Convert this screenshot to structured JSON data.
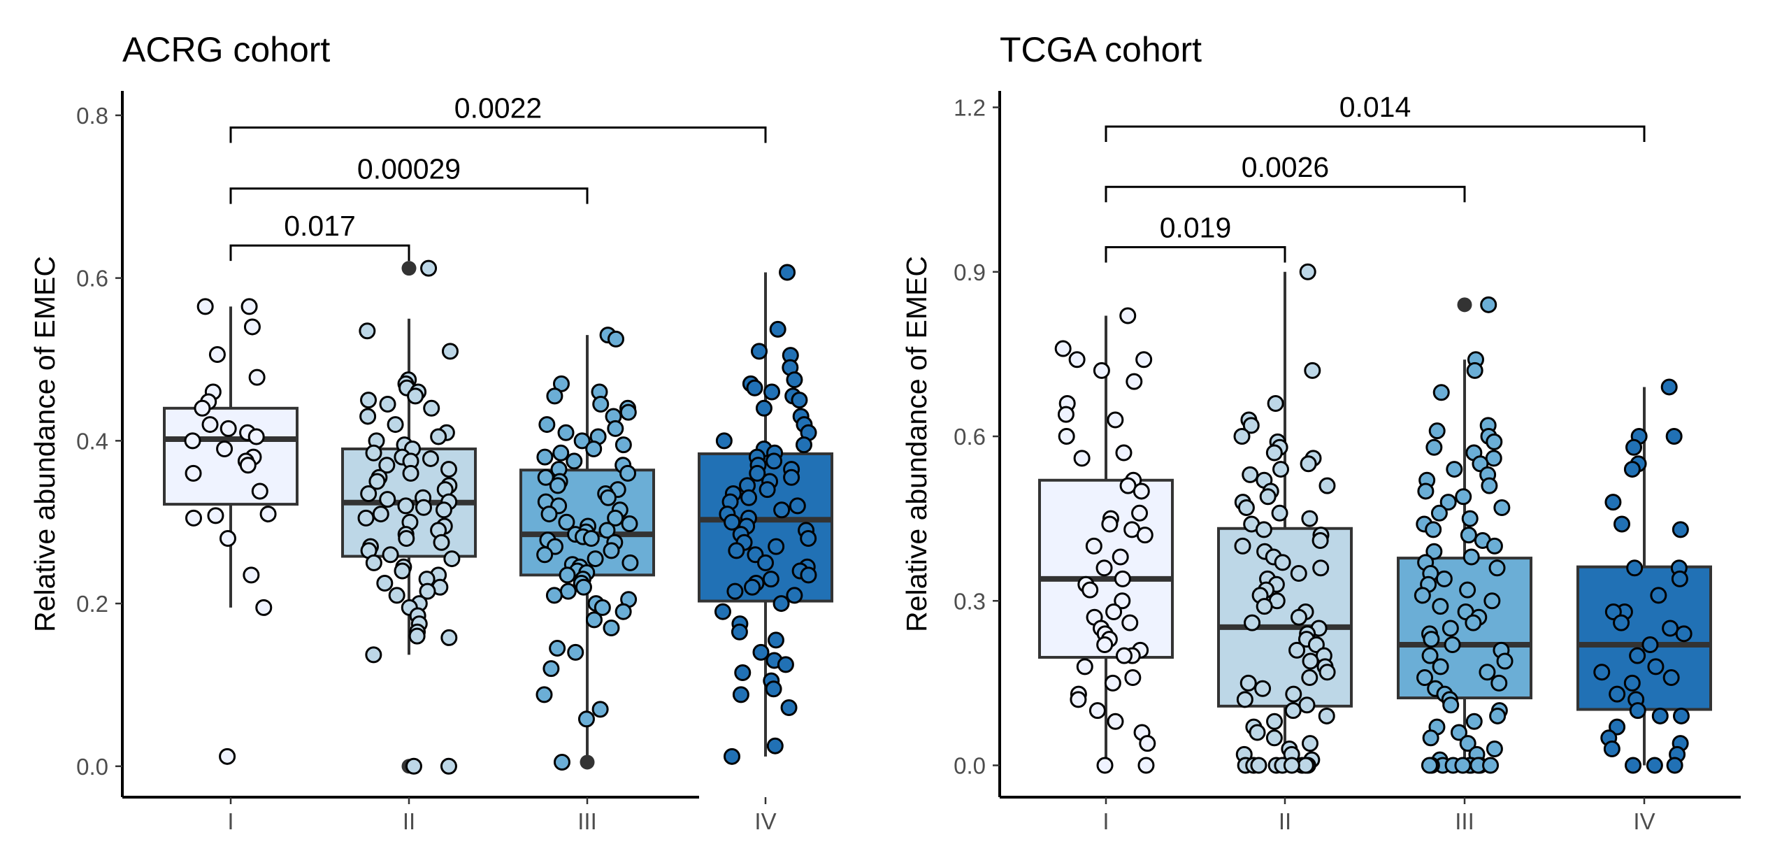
{
  "chart_data": [
    {
      "type": "box",
      "title": "ACRG cohort",
      "xlabel": "",
      "ylabel": "Relative abundance of EMEC",
      "ylim": [
        -0.038,
        0.83
      ],
      "yticks": [
        0.0,
        0.2,
        0.4,
        0.6,
        0.8
      ],
      "ytick_labels": [
        "0.0",
        "0.2",
        "0.4",
        "0.6",
        "0.8"
      ],
      "categories": [
        "I",
        "II",
        "III",
        "IV"
      ],
      "colors": [
        "#eff3ff",
        "#bdd7e7",
        "#6baed6",
        "#2171b5"
      ],
      "boxes": [
        {
          "category": "I",
          "whisker_low": 0.195,
          "q1": 0.322,
          "median": 0.402,
          "q3": 0.44,
          "whisker_high": 0.565,
          "outliers": []
        },
        {
          "category": "II",
          "whisker_low": 0.137,
          "q1": 0.258,
          "median": 0.324,
          "q3": 0.39,
          "whisker_high": 0.55,
          "outliers": [
            0.612,
            0.0
          ]
        },
        {
          "category": "III",
          "whisker_low": 0.01,
          "q1": 0.235,
          "median": 0.285,
          "q3": 0.364,
          "whisker_high": 0.53,
          "outliers": [
            0.005
          ]
        },
        {
          "category": "IV",
          "whisker_low": 0.012,
          "q1": 0.203,
          "median": 0.303,
          "q3": 0.384,
          "whisker_high": 0.607,
          "outliers": []
        }
      ],
      "points": [
        {
          "category": "I",
          "values": [
            0.565,
            0.565,
            0.54,
            0.506,
            0.478,
            0.46,
            0.448,
            0.44,
            0.42,
            0.415,
            0.41,
            0.405,
            0.4,
            0.39,
            0.38,
            0.375,
            0.37,
            0.36,
            0.338,
            0.31,
            0.308,
            0.305,
            0.28,
            0.235,
            0.195,
            0.012
          ]
        },
        {
          "category": "II",
          "values": [
            0.612,
            0.535,
            0.51,
            0.475,
            0.47,
            0.465,
            0.46,
            0.455,
            0.45,
            0.445,
            0.44,
            0.43,
            0.42,
            0.41,
            0.405,
            0.4,
            0.395,
            0.39,
            0.385,
            0.38,
            0.378,
            0.375,
            0.37,
            0.365,
            0.36,
            0.355,
            0.35,
            0.345,
            0.34,
            0.335,
            0.33,
            0.328,
            0.325,
            0.32,
            0.318,
            0.315,
            0.31,
            0.305,
            0.3,
            0.295,
            0.29,
            0.285,
            0.28,
            0.275,
            0.27,
            0.265,
            0.26,
            0.255,
            0.25,
            0.245,
            0.24,
            0.235,
            0.23,
            0.225,
            0.22,
            0.215,
            0.21,
            0.2,
            0.195,
            0.185,
            0.175,
            0.165,
            0.16,
            0.158,
            0.137,
            0.0,
            0.0
          ]
        },
        {
          "category": "III",
          "values": [
            0.53,
            0.525,
            0.47,
            0.46,
            0.455,
            0.445,
            0.44,
            0.435,
            0.43,
            0.42,
            0.415,
            0.41,
            0.405,
            0.4,
            0.395,
            0.39,
            0.385,
            0.38,
            0.375,
            0.37,
            0.365,
            0.36,
            0.355,
            0.35,
            0.345,
            0.34,
            0.335,
            0.33,
            0.325,
            0.32,
            0.315,
            0.31,
            0.305,
            0.3,
            0.298,
            0.295,
            0.29,
            0.288,
            0.285,
            0.282,
            0.28,
            0.278,
            0.275,
            0.27,
            0.265,
            0.26,
            0.255,
            0.25,
            0.248,
            0.245,
            0.24,
            0.238,
            0.235,
            0.23,
            0.225,
            0.22,
            0.215,
            0.21,
            0.205,
            0.2,
            0.195,
            0.19,
            0.18,
            0.17,
            0.145,
            0.14,
            0.12,
            0.088,
            0.07,
            0.058,
            0.005
          ]
        },
        {
          "category": "IV",
          "values": [
            0.607,
            0.537,
            0.51,
            0.505,
            0.49,
            0.475,
            0.47,
            0.465,
            0.46,
            0.455,
            0.45,
            0.44,
            0.43,
            0.42,
            0.41,
            0.4,
            0.395,
            0.39,
            0.385,
            0.38,
            0.375,
            0.37,
            0.365,
            0.36,
            0.355,
            0.35,
            0.345,
            0.34,
            0.335,
            0.33,
            0.325,
            0.32,
            0.315,
            0.31,
            0.305,
            0.3,
            0.295,
            0.29,
            0.285,
            0.28,
            0.275,
            0.27,
            0.265,
            0.26,
            0.25,
            0.245,
            0.24,
            0.235,
            0.23,
            0.225,
            0.22,
            0.215,
            0.21,
            0.2,
            0.19,
            0.175,
            0.165,
            0.155,
            0.14,
            0.13,
            0.125,
            0.115,
            0.105,
            0.095,
            0.088,
            0.072,
            0.025,
            0.012
          ]
        }
      ],
      "comparisons": [
        {
          "groups": [
            "I",
            "II"
          ],
          "label": "0.017",
          "y": 0.64
        },
        {
          "groups": [
            "I",
            "III"
          ],
          "label": "0.00029",
          "y": 0.71
        },
        {
          "groups": [
            "I",
            "IV"
          ],
          "label": "0.0022",
          "y": 0.785
        }
      ]
    },
    {
      "type": "box",
      "title": "TCGA cohort",
      "xlabel": "",
      "ylabel": "Relative abundance of EMEC",
      "ylim": [
        -0.058,
        1.23
      ],
      "yticks": [
        0.0,
        0.3,
        0.6,
        0.9,
        1.2
      ],
      "ytick_labels": [
        "0.0",
        "0.3",
        "0.6",
        "0.9",
        "1.2"
      ],
      "categories": [
        "I",
        "II",
        "III",
        "IV"
      ],
      "colors": [
        "#eff3ff",
        "#bdd7e7",
        "#6baed6",
        "#2171b5"
      ],
      "boxes": [
        {
          "category": "I",
          "whisker_low": 0.0,
          "q1": 0.197,
          "median": 0.34,
          "q3": 0.52,
          "whisker_high": 0.82,
          "outliers": []
        },
        {
          "category": "II",
          "whisker_low": 0.0,
          "q1": 0.108,
          "median": 0.252,
          "q3": 0.432,
          "whisker_high": 0.9,
          "outliers": []
        },
        {
          "category": "III",
          "whisker_low": 0.0,
          "q1": 0.123,
          "median": 0.22,
          "q3": 0.378,
          "whisker_high": 0.74,
          "outliers": [
            0.84
          ]
        },
        {
          "category": "IV",
          "whisker_low": 0.0,
          "q1": 0.102,
          "median": 0.22,
          "q3": 0.362,
          "whisker_high": 0.69,
          "outliers": []
        }
      ],
      "points": [
        {
          "category": "I",
          "values": [
            0.82,
            0.76,
            0.74,
            0.74,
            0.72,
            0.7,
            0.66,
            0.64,
            0.63,
            0.6,
            0.57,
            0.56,
            0.52,
            0.51,
            0.5,
            0.46,
            0.45,
            0.44,
            0.43,
            0.42,
            0.4,
            0.38,
            0.36,
            0.34,
            0.33,
            0.32,
            0.3,
            0.28,
            0.27,
            0.26,
            0.25,
            0.24,
            0.23,
            0.22,
            0.21,
            0.2,
            0.2,
            0.18,
            0.16,
            0.15,
            0.13,
            0.12,
            0.1,
            0.08,
            0.06,
            0.04,
            0.0,
            0.0
          ]
        },
        {
          "category": "II",
          "values": [
            0.9,
            0.72,
            0.66,
            0.63,
            0.62,
            0.6,
            0.59,
            0.58,
            0.57,
            0.56,
            0.55,
            0.54,
            0.53,
            0.52,
            0.51,
            0.5,
            0.49,
            0.48,
            0.47,
            0.46,
            0.45,
            0.44,
            0.43,
            0.42,
            0.41,
            0.4,
            0.39,
            0.38,
            0.37,
            0.36,
            0.35,
            0.34,
            0.33,
            0.32,
            0.31,
            0.3,
            0.29,
            0.28,
            0.27,
            0.26,
            0.25,
            0.24,
            0.23,
            0.22,
            0.21,
            0.2,
            0.19,
            0.18,
            0.17,
            0.16,
            0.15,
            0.14,
            0.13,
            0.12,
            0.11,
            0.1,
            0.09,
            0.08,
            0.07,
            0.06,
            0.05,
            0.04,
            0.03,
            0.02,
            0.02,
            0.01,
            0.0,
            0.0,
            0.0,
            0.0,
            0.0,
            0.0,
            0.0,
            0.0,
            0.0
          ]
        },
        {
          "category": "III",
          "values": [
            0.84,
            0.74,
            0.72,
            0.68,
            0.62,
            0.61,
            0.6,
            0.59,
            0.58,
            0.57,
            0.56,
            0.55,
            0.54,
            0.53,
            0.52,
            0.51,
            0.5,
            0.49,
            0.48,
            0.47,
            0.46,
            0.45,
            0.44,
            0.43,
            0.42,
            0.41,
            0.4,
            0.39,
            0.38,
            0.37,
            0.36,
            0.35,
            0.34,
            0.33,
            0.32,
            0.31,
            0.3,
            0.29,
            0.28,
            0.27,
            0.26,
            0.25,
            0.24,
            0.23,
            0.22,
            0.21,
            0.2,
            0.19,
            0.18,
            0.17,
            0.16,
            0.15,
            0.14,
            0.13,
            0.12,
            0.11,
            0.1,
            0.09,
            0.08,
            0.07,
            0.06,
            0.05,
            0.04,
            0.03,
            0.02,
            0.01,
            0.0,
            0.0,
            0.0,
            0.0,
            0.0,
            0.0,
            0.0,
            0.0,
            0.0,
            0.0
          ]
        },
        {
          "category": "IV",
          "values": [
            0.69,
            0.6,
            0.6,
            0.58,
            0.55,
            0.54,
            0.48,
            0.44,
            0.43,
            0.36,
            0.36,
            0.34,
            0.31,
            0.28,
            0.28,
            0.26,
            0.25,
            0.24,
            0.22,
            0.2,
            0.18,
            0.17,
            0.16,
            0.15,
            0.13,
            0.12,
            0.1,
            0.09,
            0.09,
            0.07,
            0.05,
            0.04,
            0.03,
            0.02,
            0.0,
            0.0,
            0.0
          ]
        }
      ],
      "comparisons": [
        {
          "groups": [
            "I",
            "II"
          ],
          "label": "0.019",
          "y": 0.945
        },
        {
          "groups": [
            "I",
            "III"
          ],
          "label": "0.0026",
          "y": 1.055
        },
        {
          "groups": [
            "I",
            "IV"
          ],
          "label": "0.014",
          "y": 1.165
        }
      ]
    }
  ]
}
